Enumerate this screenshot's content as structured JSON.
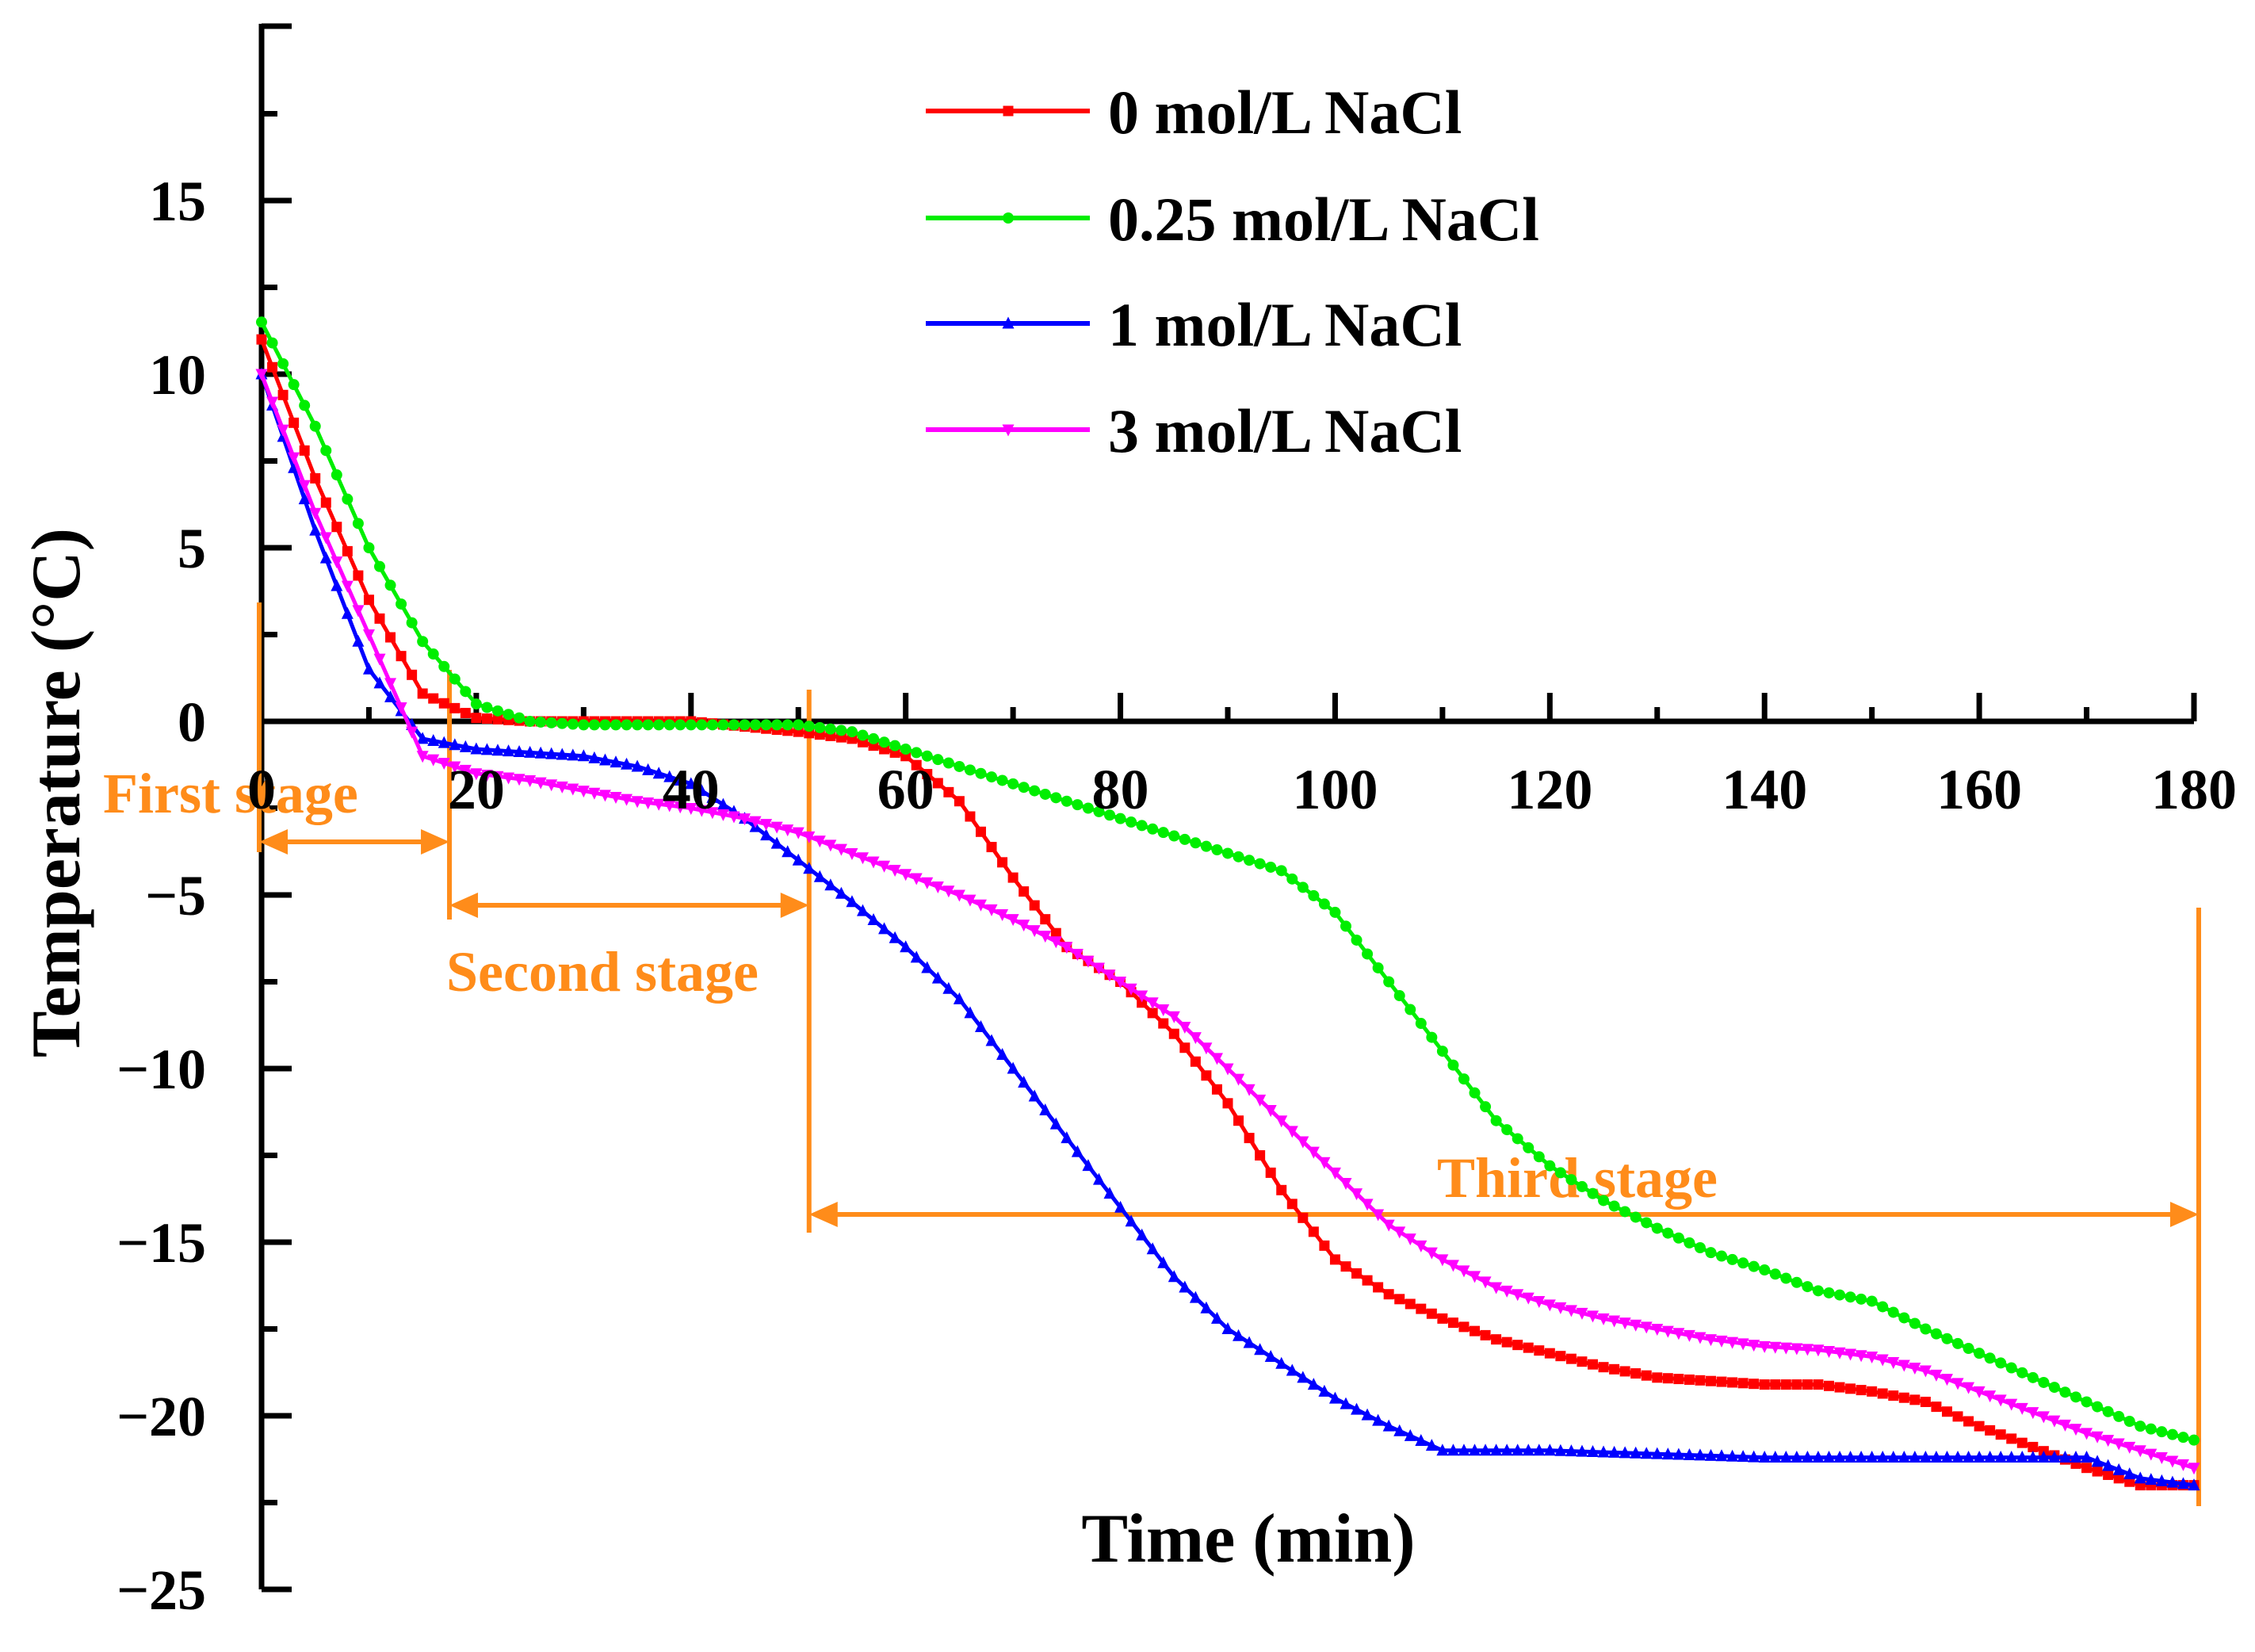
{
  "chart_data": {
    "type": "line",
    "xlabel": "Time (min)",
    "ylabel": "Temperature (°C)",
    "xlim": [
      0,
      180
    ],
    "ylim": [
      -25,
      20
    ],
    "xticks": [
      0,
      20,
      40,
      60,
      80,
      100,
      120,
      140,
      160,
      180
    ],
    "yticks": [
      15,
      10,
      5,
      0,
      -5,
      -10,
      -15,
      -20,
      -25
    ],
    "ytick_labels": [
      "15",
      "10",
      "5",
      "0",
      "−5",
      "−10",
      "−15",
      "−20",
      "−25"
    ],
    "legend_position": "top-center",
    "series": [
      {
        "name": "0 mol/L NaCl",
        "color": "#ff0000",
        "marker": "square",
        "x": [
          0,
          5,
          10,
          15,
          20,
          25,
          30,
          40,
          50,
          55,
          60,
          65,
          70,
          75,
          80,
          85,
          90,
          95,
          100,
          105,
          110,
          115,
          120,
          125,
          130,
          135,
          140,
          145,
          150,
          155,
          160,
          165,
          170,
          175,
          180
        ],
        "y": [
          11,
          7,
          3.5,
          0.8,
          0.1,
          0,
          0,
          0,
          -0.3,
          -0.5,
          -1.0,
          -2.3,
          -4.5,
          -6.5,
          -7.5,
          -9.0,
          -11.0,
          -13.5,
          -15.5,
          -16.5,
          -17.2,
          -17.8,
          -18.2,
          -18.6,
          -18.9,
          -19.0,
          -19.1,
          -19.1,
          -19.3,
          -19.6,
          -20.3,
          -20.9,
          -21.5,
          -22.0,
          -22.0
        ]
      },
      {
        "name": "0.25 mol/L NaCl",
        "color": "#00ee00",
        "marker": "circle",
        "x": [
          0,
          5,
          10,
          15,
          20,
          25,
          30,
          40,
          50,
          55,
          60,
          65,
          70,
          75,
          80,
          85,
          90,
          95,
          100,
          105,
          110,
          115,
          120,
          125,
          130,
          135,
          140,
          145,
          150,
          155,
          160,
          165,
          170,
          175,
          180
        ],
        "y": [
          11.5,
          8.5,
          5.0,
          2.3,
          0.5,
          0,
          -0.1,
          -0.1,
          -0.1,
          -0.3,
          -0.8,
          -1.3,
          -1.8,
          -2.3,
          -2.8,
          -3.3,
          -3.8,
          -4.3,
          -5.5,
          -7.5,
          -9.5,
          -11.5,
          -12.8,
          -13.8,
          -14.6,
          -15.3,
          -15.8,
          -16.4,
          -16.7,
          -17.5,
          -18.2,
          -18.9,
          -19.6,
          -20.3,
          -20.7
        ]
      },
      {
        "name": "1 mol/L NaCl",
        "color": "#0000ff",
        "marker": "triangle-up",
        "x": [
          0,
          5,
          10,
          15,
          20,
          25,
          30,
          35,
          40,
          45,
          50,
          55,
          60,
          65,
          70,
          75,
          80,
          85,
          90,
          95,
          100,
          105,
          110,
          120,
          140,
          160,
          170,
          175,
          180
        ],
        "y": [
          10,
          5.5,
          1.5,
          -0.5,
          -0.8,
          -0.9,
          -1.0,
          -1.3,
          -1.8,
          -2.8,
          -4.0,
          -5.2,
          -6.5,
          -8.0,
          -10.0,
          -12.0,
          -14.0,
          -16.0,
          -17.5,
          -18.5,
          -19.5,
          -20.3,
          -21.0,
          -21.0,
          -21.2,
          -21.2,
          -21.2,
          -21.8,
          -22.0
        ]
      },
      {
        "name": "3 mol/L NaCl",
        "color": "#ff00ff",
        "marker": "triangle-down",
        "x": [
          0,
          5,
          10,
          15,
          20,
          25,
          30,
          35,
          40,
          45,
          50,
          55,
          60,
          65,
          70,
          75,
          80,
          85,
          90,
          95,
          100,
          105,
          110,
          115,
          120,
          125,
          130,
          135,
          140,
          145,
          150,
          155,
          160,
          165,
          170,
          175,
          180
        ],
        "y": [
          10,
          6.0,
          2.5,
          -1.0,
          -1.5,
          -1.7,
          -2.0,
          -2.3,
          -2.5,
          -2.8,
          -3.2,
          -3.8,
          -4.4,
          -5.0,
          -5.7,
          -6.5,
          -7.5,
          -8.5,
          -10.0,
          -11.5,
          -13.0,
          -14.5,
          -15.5,
          -16.3,
          -16.8,
          -17.2,
          -17.5,
          -17.8,
          -18.0,
          -18.1,
          -18.3,
          -18.7,
          -19.3,
          -19.9,
          -20.5,
          -21.0,
          -21.5
        ]
      }
    ],
    "stages": [
      {
        "label": "First stage",
        "x_start": 0,
        "x_end": 17.5
      },
      {
        "label": "Second stage",
        "x_start": 17.5,
        "x_end": 51
      },
      {
        "label": "Third stage",
        "x_start": 51,
        "x_end": 180
      }
    ],
    "stage_color": "#ff8c1a"
  }
}
